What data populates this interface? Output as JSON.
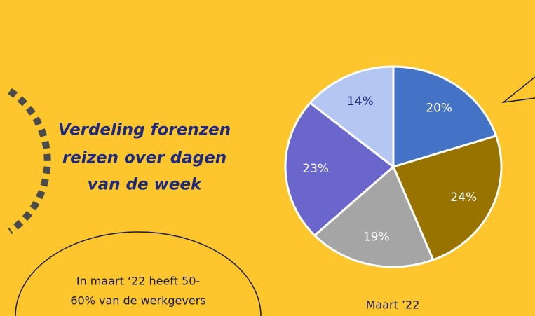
{
  "chart_data": {
    "type": "pie",
    "title": [
      "Verdeling forenzen",
      "reizen over dagen",
      "van de week"
    ],
    "values": [
      20,
      24,
      19,
      23,
      14
    ],
    "value_labels": [
      "20%",
      "24%",
      "19%",
      "23%",
      "14%"
    ],
    "colors": [
      "#4472c4",
      "#997300",
      "#a5a5a5",
      "#6a66cc",
      "#b4c7f3"
    ],
    "caption": "Maart ’22",
    "annotation": [
      "In maart ‘22 heeft 50-",
      "60% van de werkgevers"
    ]
  }
}
